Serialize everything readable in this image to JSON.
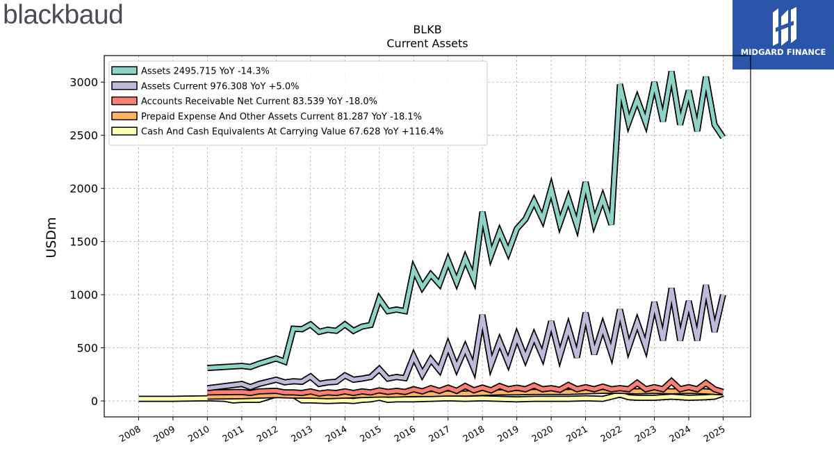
{
  "branding": {
    "left_logo": "blackbaud",
    "right_logo": "MIDGARD FINANCE"
  },
  "chart_data": {
    "type": "line",
    "title": "BLKB",
    "subtitle": "Current  Assets",
    "ylabel": "USDm",
    "xlabel": "",
    "xlim": [
      2007.0,
      2025.8
    ],
    "ylim": [
      -150,
      3250
    ],
    "yticks": [
      0,
      500,
      1000,
      1500,
      2000,
      2500,
      3000
    ],
    "xticks": [
      2008,
      2009,
      2010,
      2011,
      2012,
      2013,
      2014,
      2015,
      2016,
      2017,
      2018,
      2019,
      2020,
      2021,
      2022,
      2023,
      2024,
      2025
    ],
    "grid": true,
    "legend_position": "top-left",
    "series": [
      {
        "name": "Assets",
        "legend": "Assets  2495.715 YoY -14.3%",
        "color": "#8dd3c7",
        "points": [
          [
            2010.0,
            310
          ],
          [
            2011.0,
            330
          ],
          [
            2011.25,
            320
          ],
          [
            2011.5,
            350
          ],
          [
            2012.0,
            400
          ],
          [
            2012.25,
            370
          ],
          [
            2012.5,
            680
          ],
          [
            2012.75,
            675
          ],
          [
            2013.0,
            720
          ],
          [
            2013.25,
            650
          ],
          [
            2013.5,
            670
          ],
          [
            2013.75,
            660
          ],
          [
            2014.0,
            720
          ],
          [
            2014.25,
            660
          ],
          [
            2014.5,
            700
          ],
          [
            2014.75,
            715
          ],
          [
            2015.0,
            960
          ],
          [
            2015.25,
            845
          ],
          [
            2015.5,
            860
          ],
          [
            2015.75,
            845
          ],
          [
            2016.0,
            1240
          ],
          [
            2016.25,
            1070
          ],
          [
            2016.5,
            1190
          ],
          [
            2016.75,
            1100
          ],
          [
            2017.0,
            1320
          ],
          [
            2017.25,
            1120
          ],
          [
            2017.5,
            1340
          ],
          [
            2017.75,
            1150
          ],
          [
            2018.0,
            1780
          ],
          [
            2018.25,
            1370
          ],
          [
            2018.5,
            1590
          ],
          [
            2018.75,
            1400
          ],
          [
            2019.0,
            1620
          ],
          [
            2019.25,
            1710
          ],
          [
            2019.5,
            1880
          ],
          [
            2019.75,
            1710
          ],
          [
            2020.0,
            2000
          ],
          [
            2020.25,
            1670
          ],
          [
            2020.5,
            1900
          ],
          [
            2020.75,
            1650
          ],
          [
            2021.0,
            2060
          ],
          [
            2021.25,
            1680
          ],
          [
            2021.5,
            1910
          ],
          [
            2021.75,
            1660
          ],
          [
            2022.0,
            2980
          ],
          [
            2022.25,
            2620
          ],
          [
            2022.5,
            2840
          ],
          [
            2022.75,
            2620
          ],
          [
            2023.0,
            3000
          ],
          [
            2023.25,
            2630
          ],
          [
            2023.5,
            3100
          ],
          [
            2023.75,
            2600
          ],
          [
            2024.0,
            2920
          ],
          [
            2024.25,
            2540
          ],
          [
            2024.5,
            3050
          ],
          [
            2024.75,
            2600
          ],
          [
            2025.0,
            2480
          ]
        ]
      },
      {
        "name": "Assets Current",
        "legend": "Assets Current  976.308 YoY +5.0%",
        "color": "#bebada",
        "points": [
          [
            2010.0,
            120
          ],
          [
            2011.0,
            160
          ],
          [
            2011.25,
            130
          ],
          [
            2011.5,
            160
          ],
          [
            2012.0,
            200
          ],
          [
            2012.25,
            175
          ],
          [
            2012.5,
            185
          ],
          [
            2012.75,
            180
          ],
          [
            2013.0,
            230
          ],
          [
            2013.25,
            160
          ],
          [
            2013.5,
            175
          ],
          [
            2013.75,
            180
          ],
          [
            2014.0,
            240
          ],
          [
            2014.25,
            200
          ],
          [
            2014.5,
            210
          ],
          [
            2014.75,
            225
          ],
          [
            2015.0,
            300
          ],
          [
            2015.25,
            210
          ],
          [
            2015.5,
            225
          ],
          [
            2015.75,
            215
          ],
          [
            2016.0,
            420
          ],
          [
            2016.25,
            250
          ],
          [
            2016.5,
            390
          ],
          [
            2016.75,
            290
          ],
          [
            2017.0,
            520
          ],
          [
            2017.25,
            310
          ],
          [
            2017.5,
            500
          ],
          [
            2017.75,
            305
          ],
          [
            2018.0,
            810
          ],
          [
            2018.25,
            340
          ],
          [
            2018.5,
            560
          ],
          [
            2018.75,
            360
          ],
          [
            2019.0,
            610
          ],
          [
            2019.25,
            400
          ],
          [
            2019.5,
            610
          ],
          [
            2019.75,
            420
          ],
          [
            2020.0,
            750
          ],
          [
            2020.25,
            420
          ],
          [
            2020.5,
            690
          ],
          [
            2020.75,
            410
          ],
          [
            2021.0,
            830
          ],
          [
            2021.25,
            440
          ],
          [
            2021.5,
            700
          ],
          [
            2021.75,
            450
          ],
          [
            2022.0,
            860
          ],
          [
            2022.25,
            500
          ],
          [
            2022.5,
            740
          ],
          [
            2022.75,
            510
          ],
          [
            2023.0,
            930
          ],
          [
            2023.25,
            570
          ],
          [
            2023.5,
            1060
          ],
          [
            2023.75,
            570
          ],
          [
            2024.0,
            940
          ],
          [
            2024.25,
            570
          ],
          [
            2024.5,
            1090
          ],
          [
            2024.75,
            650
          ],
          [
            2025.0,
            1000
          ]
        ]
      },
      {
        "name": "Accounts Receivable Net Current",
        "legend": "Accounts Receivable Net Current  83.539 YoY -18.0%",
        "color": "#fb8072",
        "points": [
          [
            2010.0,
            80
          ],
          [
            2011.0,
            85
          ],
          [
            2011.25,
            75
          ],
          [
            2011.5,
            90
          ],
          [
            2012.0,
            95
          ],
          [
            2012.25,
            80
          ],
          [
            2012.5,
            80
          ],
          [
            2012.75,
            75
          ],
          [
            2013.0,
            90
          ],
          [
            2013.25,
            70
          ],
          [
            2013.5,
            80
          ],
          [
            2013.75,
            75
          ],
          [
            2014.0,
            90
          ],
          [
            2014.25,
            75
          ],
          [
            2014.5,
            90
          ],
          [
            2014.75,
            80
          ],
          [
            2015.0,
            100
          ],
          [
            2015.25,
            85
          ],
          [
            2015.5,
            95
          ],
          [
            2015.75,
            85
          ],
          [
            2016.0,
            110
          ],
          [
            2016.25,
            90
          ],
          [
            2016.5,
            120
          ],
          [
            2016.75,
            95
          ],
          [
            2017.0,
            125
          ],
          [
            2017.25,
            95
          ],
          [
            2017.5,
            140
          ],
          [
            2017.75,
            100
          ],
          [
            2018.0,
            125
          ],
          [
            2018.25,
            100
          ],
          [
            2018.5,
            140
          ],
          [
            2018.75,
            110
          ],
          [
            2019.0,
            125
          ],
          [
            2019.25,
            110
          ],
          [
            2019.5,
            145
          ],
          [
            2019.75,
            110
          ],
          [
            2020.0,
            120
          ],
          [
            2020.25,
            105
          ],
          [
            2020.5,
            150
          ],
          [
            2020.75,
            110
          ],
          [
            2021.0,
            130
          ],
          [
            2021.25,
            110
          ],
          [
            2021.5,
            135
          ],
          [
            2021.75,
            110
          ],
          [
            2022.0,
            120
          ],
          [
            2022.25,
            110
          ],
          [
            2022.5,
            170
          ],
          [
            2022.75,
            110
          ],
          [
            2023.0,
            130
          ],
          [
            2023.25,
            110
          ],
          [
            2023.5,
            185
          ],
          [
            2023.75,
            110
          ],
          [
            2024.0,
            130
          ],
          [
            2024.25,
            110
          ],
          [
            2024.5,
            170
          ],
          [
            2024.75,
            110
          ],
          [
            2025.0,
            85
          ]
        ]
      },
      {
        "name": "Prepaid Expense And Other Assets Current",
        "legend": "Prepaid Expense And Other Assets Current  81.287 YoY -18.1%",
        "color": "#fdb462",
        "points": [
          [
            2010.0,
            40
          ],
          [
            2011.0,
            45
          ],
          [
            2011.5,
            50
          ],
          [
            2012.0,
            55
          ],
          [
            2012.5,
            50
          ],
          [
            2013.0,
            50
          ],
          [
            2013.5,
            45
          ],
          [
            2014.0,
            50
          ],
          [
            2014.5,
            55
          ],
          [
            2015.0,
            60
          ],
          [
            2015.5,
            60
          ],
          [
            2016.0,
            65
          ],
          [
            2016.5,
            65
          ],
          [
            2017.0,
            70
          ],
          [
            2017.5,
            70
          ],
          [
            2018.0,
            75
          ],
          [
            2018.5,
            80
          ],
          [
            2019.0,
            80
          ],
          [
            2019.5,
            85
          ],
          [
            2020.0,
            85
          ],
          [
            2020.5,
            85
          ],
          [
            2021.0,
            90
          ],
          [
            2021.5,
            95
          ],
          [
            2022.0,
            95
          ],
          [
            2022.5,
            90
          ],
          [
            2023.0,
            95
          ],
          [
            2023.5,
            90
          ],
          [
            2024.0,
            95
          ],
          [
            2024.5,
            90
          ],
          [
            2025.0,
            80
          ]
        ]
      },
      {
        "name": "Cash And Cash Equivalents At Carrying Value",
        "legend": "Cash And Cash Equivalents At Carrying Value  67.628 YoY +116.4%",
        "color": "#ffffb3",
        "points": [
          [
            2008.0,
            20
          ],
          [
            2009.0,
            20
          ],
          [
            2010.0,
            25
          ],
          [
            2010.5,
            20
          ],
          [
            2010.75,
            5
          ],
          [
            2011.0,
            10
          ],
          [
            2011.5,
            10
          ],
          [
            2012.0,
            60
          ],
          [
            2012.5,
            55
          ],
          [
            2012.75,
            5
          ],
          [
            2013.0,
            5
          ],
          [
            2013.5,
            0
          ],
          [
            2014.0,
            5
          ],
          [
            2014.25,
            0
          ],
          [
            2014.5,
            10
          ],
          [
            2014.75,
            15
          ],
          [
            2015.0,
            30
          ],
          [
            2015.25,
            10
          ],
          [
            2015.5,
            15
          ],
          [
            2016.0,
            15
          ],
          [
            2016.5,
            20
          ],
          [
            2017.0,
            25
          ],
          [
            2017.5,
            20
          ],
          [
            2018.0,
            25
          ],
          [
            2018.5,
            20
          ],
          [
            2019.0,
            15
          ],
          [
            2019.5,
            20
          ],
          [
            2020.0,
            20
          ],
          [
            2020.5,
            20
          ],
          [
            2021.0,
            25
          ],
          [
            2021.5,
            20
          ],
          [
            2022.0,
            60
          ],
          [
            2022.25,
            35
          ],
          [
            2022.5,
            30
          ],
          [
            2023.0,
            30
          ],
          [
            2023.5,
            40
          ],
          [
            2024.0,
            30
          ],
          [
            2024.5,
            35
          ],
          [
            2024.75,
            40
          ],
          [
            2025.0,
            67.6
          ]
        ]
      }
    ]
  }
}
